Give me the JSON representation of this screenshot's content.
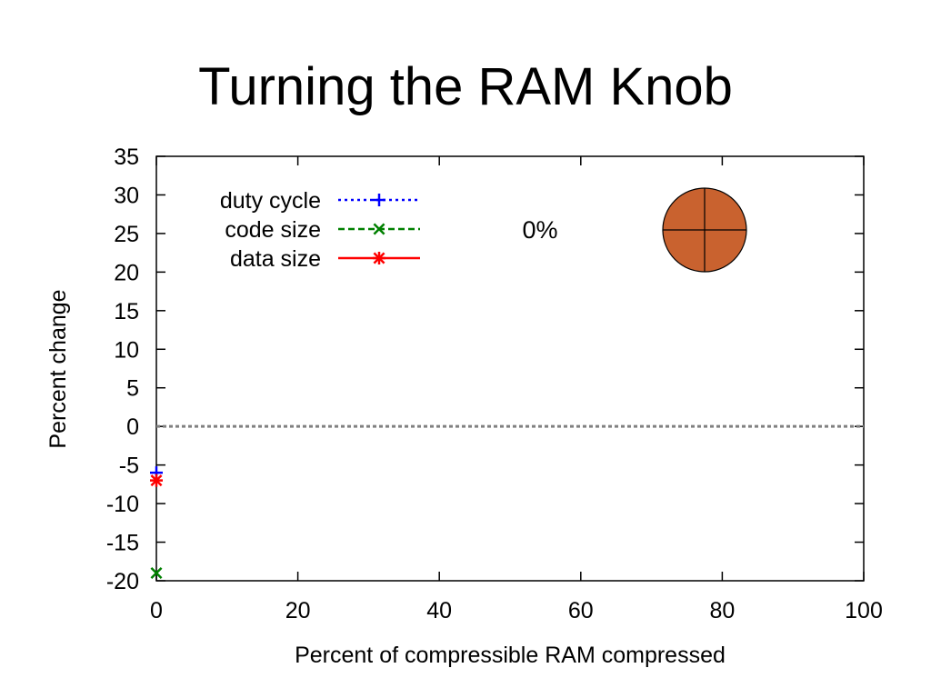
{
  "slide": {
    "title": "Turning the RAM Knob"
  },
  "knob": {
    "label": "0%",
    "color": "#c9622f"
  },
  "chart_data": {
    "type": "scatter",
    "title": "",
    "xlabel": "Percent of compressible RAM compressed",
    "ylabel": "Percent change",
    "xlim": [
      0,
      100
    ],
    "ylim": [
      -20,
      35
    ],
    "xticks": [
      0,
      20,
      40,
      60,
      80,
      100
    ],
    "yticks": [
      -20,
      -15,
      -10,
      -5,
      0,
      5,
      10,
      15,
      20,
      25,
      30,
      35
    ],
    "grid": false,
    "legend_position": "top-left",
    "reference_line": {
      "y": 0,
      "style": "dotted",
      "color": "#808080"
    },
    "series": [
      {
        "name": "duty cycle",
        "color": "#0000ff",
        "marker": "+",
        "line": "dotted",
        "points": [
          {
            "x": 0,
            "y": -6
          }
        ]
      },
      {
        "name": "code size",
        "color": "#008000",
        "marker": "x",
        "line": "dashed",
        "points": [
          {
            "x": 0,
            "y": -19
          }
        ]
      },
      {
        "name": "data size",
        "color": "#ff0000",
        "marker": "*",
        "line": "solid",
        "points": [
          {
            "x": 0,
            "y": -7
          }
        ]
      }
    ]
  }
}
